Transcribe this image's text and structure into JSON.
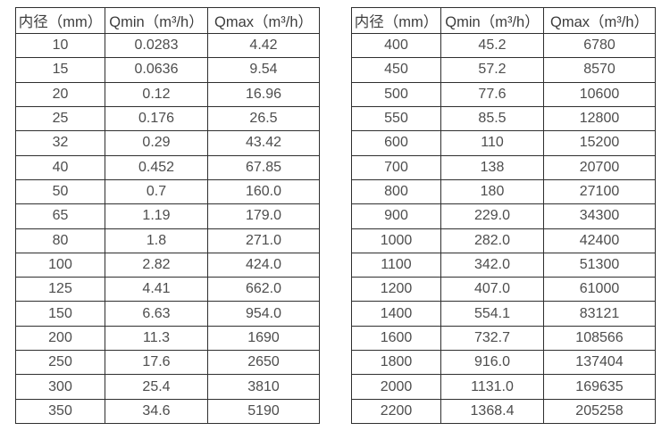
{
  "tables": [
    {
      "name": "flow-table-small-diameters",
      "headers": [
        "内径（mm）",
        "Qmin（m³/h）",
        "Qmax（m³/h）"
      ],
      "rows": [
        [
          "10",
          "0.0283",
          "4.42"
        ],
        [
          "15",
          "0.0636",
          "9.54"
        ],
        [
          "20",
          "0.12",
          "16.96"
        ],
        [
          "25",
          "0.176",
          "26.5"
        ],
        [
          "32",
          "0.29",
          "43.42"
        ],
        [
          "40",
          "0.452",
          "67.85"
        ],
        [
          "50",
          "0.7",
          "160.0"
        ],
        [
          "65",
          "1.19",
          "179.0"
        ],
        [
          "80",
          "1.8",
          "271.0"
        ],
        [
          "100",
          "2.82",
          "424.0"
        ],
        [
          "125",
          "4.41",
          "662.0"
        ],
        [
          "150",
          "6.63",
          "954.0"
        ],
        [
          "200",
          "11.3",
          "1690"
        ],
        [
          "250",
          "17.6",
          "2650"
        ],
        [
          "300",
          "25.4",
          "3810"
        ],
        [
          "350",
          "34.6",
          "5190"
        ]
      ]
    },
    {
      "name": "flow-table-large-diameters",
      "headers": [
        "内径（mm）",
        "Qmin（m³/h）",
        "Qmax（m³/h）"
      ],
      "rows": [
        [
          "400",
          "45.2",
          "6780"
        ],
        [
          "450",
          "57.2",
          "8570"
        ],
        [
          "500",
          "77.6",
          "10600"
        ],
        [
          "550",
          "85.5",
          "12800"
        ],
        [
          "600",
          "110",
          "15200"
        ],
        [
          "700",
          "138",
          "20700"
        ],
        [
          "800",
          "180",
          "27100"
        ],
        [
          "900",
          "229.0",
          "34300"
        ],
        [
          "1000",
          "282.0",
          "42400"
        ],
        [
          "1100",
          "342.0",
          "51300"
        ],
        [
          "1200",
          "407.0",
          "61000"
        ],
        [
          "1400",
          "554.1",
          "83121"
        ],
        [
          "1600",
          "732.7",
          "108566"
        ],
        [
          "1800",
          "916.0",
          "137404"
        ],
        [
          "2000",
          "1131.0",
          "169635"
        ],
        [
          "2200",
          "1368.4",
          "205258"
        ]
      ]
    }
  ],
  "colors": {
    "border": "#2f2f2f",
    "text": "#4d4d4d",
    "background": "#ffffff"
  }
}
